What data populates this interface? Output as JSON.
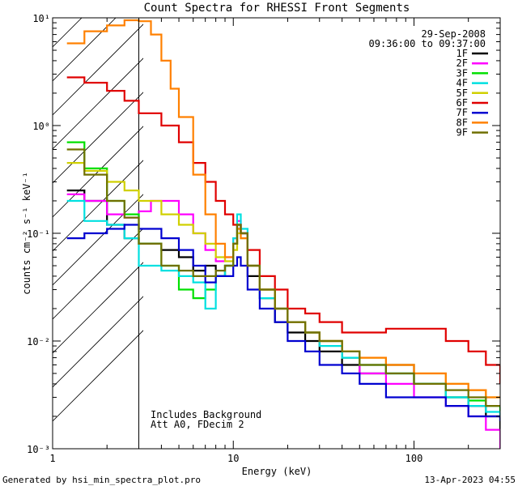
{
  "chart_data": {
    "type": "line",
    "title": "Count Spectra for RHESSI Front Segments",
    "xlabel": "Energy (keV)",
    "ylabel": "counts cm⁻² s⁻¹ keV⁻¹",
    "xscale": "log",
    "yscale": "log",
    "xlim": [
      1,
      300
    ],
    "ylim": [
      0.001,
      10
    ],
    "x_tick_labels": [
      "1",
      "10",
      "100"
    ],
    "y_tick_labels": [
      "10⁻³",
      "10⁻²",
      "10⁻¹",
      "10⁰",
      "10¹"
    ],
    "date": "29-Sep-2008",
    "time_range": "09:36:00 to 09:37:00",
    "annotation_line1": "Includes Background",
    "annotation_line2": "Att A0, FDecim 2",
    "cutoff_energy": 3,
    "footer_left": "Generated by hsi_min_spectra_plot.pro",
    "footer_right": "13-Apr-2023 04:55",
    "series": [
      {
        "name": "1F",
        "color": "#000000",
        "x": [
          1.2,
          1.5,
          2,
          2.5,
          3,
          4,
          5,
          6,
          7,
          8,
          9,
          10,
          10.5,
          11,
          12,
          14,
          17,
          20,
          25,
          30,
          40,
          50,
          70,
          100,
          150,
          200,
          250,
          300
        ],
        "y": [
          0.25,
          0.2,
          0.12,
          0.09,
          0.08,
          0.07,
          0.06,
          0.045,
          0.05,
          0.04,
          0.05,
          0.08,
          0.12,
          0.1,
          0.04,
          0.025,
          0.015,
          0.012,
          0.01,
          0.008,
          0.006,
          0.005,
          0.006,
          0.004,
          0.003,
          0.0025,
          0.002,
          0.0015
        ]
      },
      {
        "name": "2F",
        "color": "#ff00ff",
        "x": [
          1.2,
          1.5,
          2,
          2.5,
          3,
          3.5,
          4,
          5,
          6,
          7,
          8,
          9,
          10,
          10.5,
          11,
          12,
          14,
          17,
          20,
          25,
          30,
          40,
          50,
          70,
          100,
          150,
          200,
          250,
          300
        ],
        "y": [
          0.23,
          0.2,
          0.15,
          0.14,
          0.16,
          0.2,
          0.2,
          0.15,
          0.1,
          0.07,
          0.055,
          0.06,
          0.09,
          0.13,
          0.1,
          0.05,
          0.03,
          0.02,
          0.015,
          0.012,
          0.01,
          0.007,
          0.005,
          0.004,
          0.003,
          0.0025,
          0.002,
          0.0015,
          0.001
        ]
      },
      {
        "name": "3F",
        "color": "#00e000",
        "x": [
          1.2,
          1.5,
          2,
          2.5,
          3,
          4,
          5,
          6,
          7,
          8,
          9,
          10,
          10.5,
          11,
          12,
          14,
          17,
          20,
          25,
          30,
          40,
          50,
          70,
          100,
          150,
          200,
          250,
          300
        ],
        "y": [
          0.7,
          0.4,
          0.2,
          0.15,
          0.08,
          0.05,
          0.03,
          0.025,
          0.03,
          0.04,
          0.05,
          0.08,
          0.11,
          0.1,
          0.05,
          0.03,
          0.02,
          0.015,
          0.012,
          0.01,
          0.007,
          0.006,
          0.005,
          0.004,
          0.003,
          0.0028,
          0.0025,
          0.002
        ]
      },
      {
        "name": "4F",
        "color": "#00e0e0",
        "x": [
          1.2,
          1.5,
          2,
          2.5,
          3,
          4,
          5,
          6,
          7,
          8,
          9,
          10,
          10.5,
          11,
          12,
          14,
          17,
          20,
          25,
          30,
          40,
          50,
          70,
          100,
          150,
          200,
          250,
          300
        ],
        "y": [
          0.2,
          0.13,
          0.12,
          0.09,
          0.05,
          0.045,
          0.04,
          0.035,
          0.02,
          0.04,
          0.05,
          0.09,
          0.15,
          0.11,
          0.05,
          0.025,
          0.02,
          0.015,
          0.012,
          0.009,
          0.007,
          0.006,
          0.005,
          0.004,
          0.003,
          0.0025,
          0.0022,
          0.002
        ]
      },
      {
        "name": "5F",
        "color": "#d0d000",
        "x": [
          1.2,
          1.5,
          2,
          2.5,
          3,
          4,
          5,
          6,
          7,
          8,
          9,
          10,
          10.5,
          11,
          12,
          14,
          17,
          20,
          25,
          30,
          40,
          50,
          70,
          100,
          150,
          200,
          250,
          300
        ],
        "y": [
          0.45,
          0.38,
          0.3,
          0.25,
          0.2,
          0.15,
          0.12,
          0.1,
          0.08,
          0.06,
          0.055,
          0.07,
          0.1,
          0.09,
          0.05,
          0.03,
          0.02,
          0.015,
          0.012,
          0.01,
          0.008,
          0.007,
          0.006,
          0.005,
          0.004,
          0.0035,
          0.003,
          0.003
        ]
      },
      {
        "name": "6F",
        "color": "#e00000",
        "x": [
          1.2,
          1.5,
          2,
          2.5,
          3,
          4,
          5,
          6,
          7,
          8,
          9,
          10,
          11,
          12,
          14,
          17,
          20,
          25,
          30,
          40,
          50,
          70,
          100,
          150,
          200,
          250,
          300
        ],
        "y": [
          2.8,
          2.5,
          2.1,
          1.7,
          1.3,
          1,
          0.7,
          0.45,
          0.3,
          0.2,
          0.15,
          0.12,
          0.1,
          0.07,
          0.04,
          0.03,
          0.02,
          0.018,
          0.015,
          0.012,
          0.012,
          0.013,
          0.013,
          0.01,
          0.008,
          0.006,
          0.004
        ]
      },
      {
        "name": "7F",
        "color": "#0000d0",
        "x": [
          1.2,
          1.5,
          2,
          2.5,
          3,
          4,
          5,
          6,
          7,
          8,
          9,
          10,
          10.5,
          11,
          12,
          14,
          17,
          20,
          25,
          30,
          40,
          50,
          70,
          100,
          150,
          200,
          250,
          300
        ],
        "y": [
          0.09,
          0.1,
          0.11,
          0.12,
          0.11,
          0.09,
          0.07,
          0.05,
          0.035,
          0.04,
          0.04,
          0.05,
          0.06,
          0.05,
          0.03,
          0.02,
          0.015,
          0.01,
          0.008,
          0.006,
          0.005,
          0.004,
          0.003,
          0.003,
          0.0025,
          0.002,
          0.002,
          0.0018
        ]
      },
      {
        "name": "8F",
        "color": "#ff8000",
        "x": [
          1.2,
          1.5,
          2,
          2.5,
          3,
          3.5,
          4,
          4.5,
          5,
          6,
          7,
          8,
          9,
          10,
          10.5,
          11,
          12,
          14,
          17,
          20,
          25,
          30,
          40,
          50,
          70,
          100,
          150,
          200,
          250,
          300
        ],
        "y": [
          5.8,
          7.5,
          8.5,
          9.5,
          9.3,
          7,
          4,
          2.2,
          1.2,
          0.35,
          0.15,
          0.08,
          0.06,
          0.08,
          0.11,
          0.09,
          0.05,
          0.03,
          0.02,
          0.015,
          0.012,
          0.01,
          0.008,
          0.007,
          0.006,
          0.005,
          0.004,
          0.0035,
          0.003,
          0.003
        ]
      },
      {
        "name": "9F",
        "color": "#707000",
        "x": [
          1.2,
          1.5,
          2,
          2.5,
          3,
          4,
          5,
          6,
          7,
          8,
          9,
          10,
          10.5,
          11,
          12,
          14,
          17,
          20,
          25,
          30,
          40,
          50,
          70,
          100,
          150,
          200,
          250,
          300
        ],
        "y": [
          0.6,
          0.35,
          0.2,
          0.14,
          0.08,
          0.05,
          0.045,
          0.04,
          0.04,
          0.045,
          0.05,
          0.08,
          0.12,
          0.1,
          0.05,
          0.03,
          0.02,
          0.015,
          0.012,
          0.01,
          0.008,
          0.006,
          0.005,
          0.004,
          0.0035,
          0.003,
          0.0025,
          0.0025
        ]
      }
    ]
  }
}
